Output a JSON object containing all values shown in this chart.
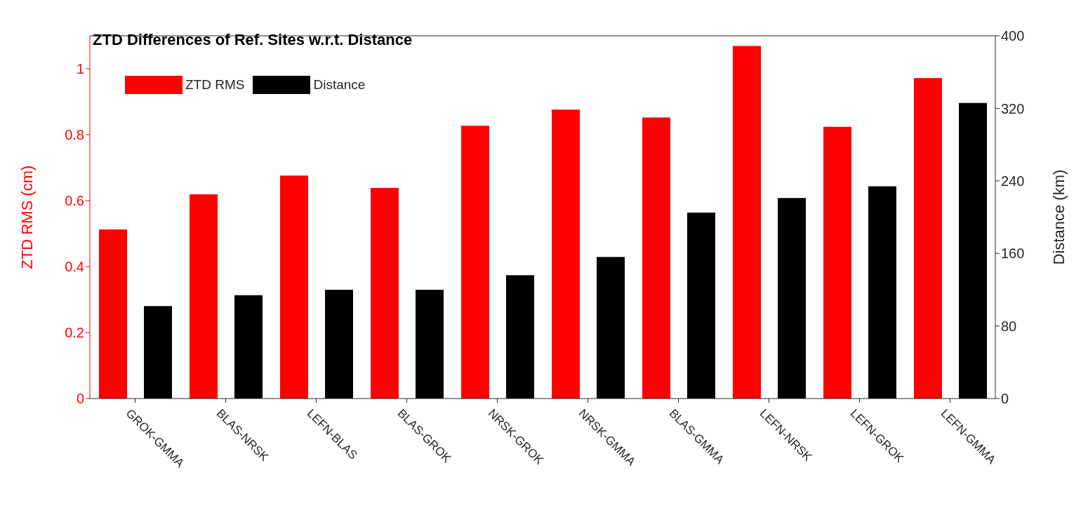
{
  "chart_data": {
    "type": "bar",
    "title": "ZTD Differences of Ref. Sites w.r.t. Distance",
    "ylabel": "ZTD RMS (cm)",
    "y2label": "Distance (km)",
    "categories": [
      "GROK-GMMA",
      "BLAS-NRSK",
      "LEFN-BLAS",
      "BLAS-GROK",
      "NRSK-GROK",
      "NRSK-GMMA",
      "BLAS-GMMA",
      "LEFN-NRSK",
      "LEFN-GROK",
      "LEFN-GMMA"
    ],
    "series": [
      {
        "name": "ZTD RMS",
        "color": "#ff0000",
        "values": [
          0.513,
          0.619,
          0.676,
          0.639,
          0.827,
          0.876,
          0.852,
          1.069,
          0.824,
          0.972
        ]
      },
      {
        "name": "Distance",
        "color": "#000000",
        "axis": "y2",
        "values": [
          102,
          114,
          120,
          120,
          136,
          156,
          205,
          221,
          234,
          326
        ]
      }
    ],
    "ylim": [
      0,
      1.1
    ],
    "yticks": [
      0,
      0.2,
      0.4,
      0.6,
      0.8,
      1
    ],
    "y2lim": [
      0,
      400
    ],
    "y2ticks": [
      0,
      80,
      160,
      240,
      320,
      400
    ],
    "legend": "top left",
    "grid": false
  }
}
